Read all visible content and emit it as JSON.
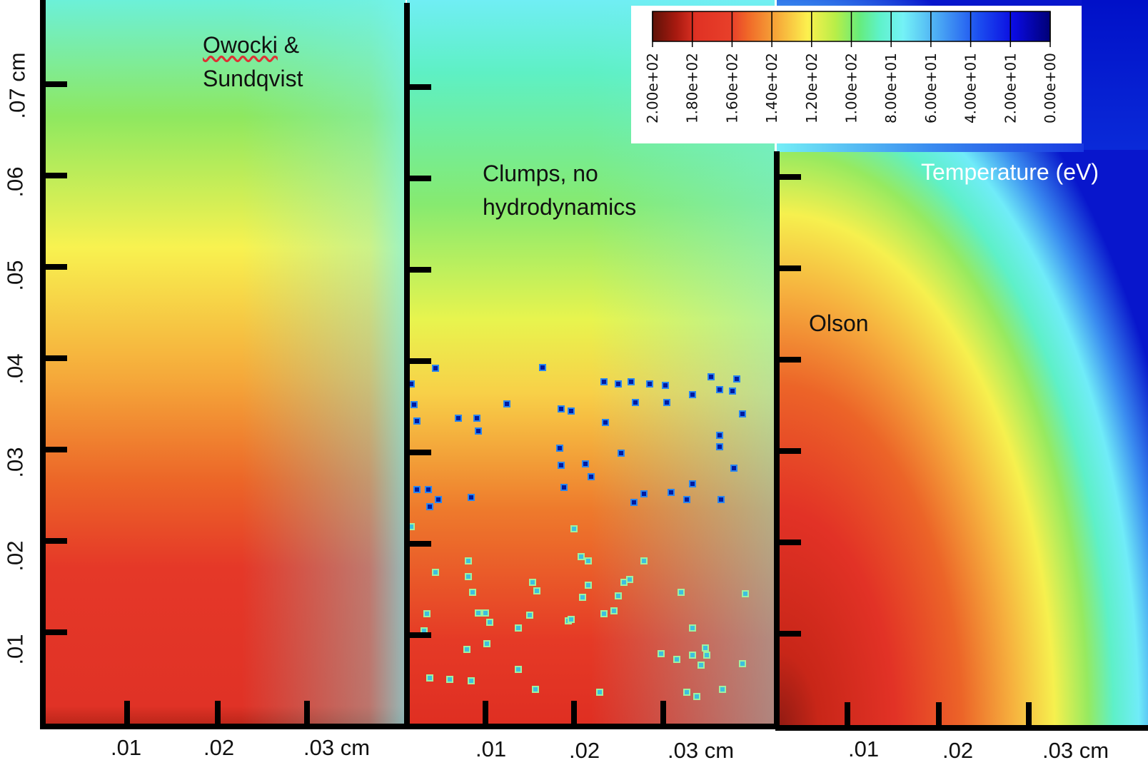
{
  "chart_data": {
    "type": "heatmap",
    "title": "Temperature (eV)",
    "colorbar": {
      "ticks": [
        "2.00e+02",
        "1.80e+02",
        "1.60e+02",
        "1.40e+02",
        "1.20e+02",
        "1.00e+02",
        "8.00e+01",
        "6.00e+01",
        "4.00e+01",
        "2.00e+01",
        "0.00e+00"
      ],
      "range": [
        200,
        0
      ],
      "colors": [
        "#5e1208",
        "#a81a10",
        "#e03224",
        "#f06828",
        "#f6a638",
        "#fcf04e",
        "#b8ee48",
        "#66ec7c",
        "#5ef2c8",
        "#74f2f6",
        "#4aa8f4",
        "#1c4ef0",
        "#0a0ae0",
        "#000076"
      ]
    },
    "panels": [
      {
        "label_line1": "Owocki",
        "label_line2": "& \nSundqvist",
        "x_ticks": [
          ".01",
          ".02",
          ".03 cm"
        ]
      },
      {
        "label": "Clumps, no\nhydrodynamics",
        "x_ticks": [
          ".01",
          ".02",
          ".03 cm"
        ]
      },
      {
        "label": "Olson",
        "x_ticks": [
          ".01",
          ".02",
          ".03 cm"
        ]
      }
    ],
    "y_ticks": [
      ".01",
      ".02",
      ".03",
      ".04",
      ".05",
      ".06",
      ".07 cm"
    ],
    "ylim": [
      0,
      0.078
    ],
    "xlim": [
      0,
      0.04
    ]
  }
}
